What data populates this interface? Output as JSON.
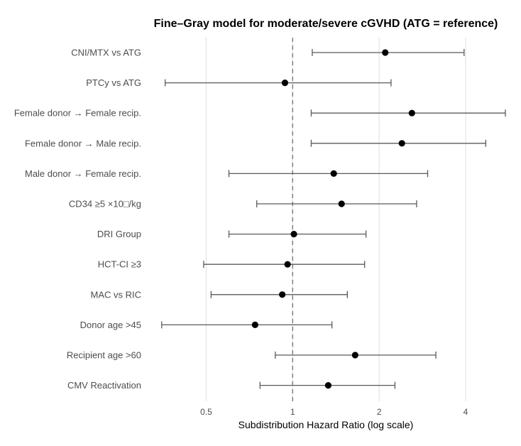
{
  "chart_data": {
    "type": "forest",
    "title": "Fine–Gray model for moderate/severe cGVHD (ATG = reference)",
    "xlabel": "Subdistribution Hazard Ratio (log scale)",
    "x_scale": "log",
    "xlim": [
      0.32,
      5.5
    ],
    "x_ticks": [
      0.5,
      1,
      2,
      4
    ],
    "x_tick_labels": [
      "0.5",
      "1",
      "2",
      "4"
    ],
    "reference_line": 1,
    "grid": "vertical major",
    "rows": [
      {
        "label": "CNI/MTX vs ATG",
        "hr": 2.1,
        "lower": 1.17,
        "upper": 3.95
      },
      {
        "label": "PTCy vs ATG",
        "hr": 0.94,
        "lower": 0.36,
        "upper": 2.2
      },
      {
        "label": "Female donor → Female recip.",
        "hr": 2.6,
        "lower": 1.16,
        "upper": 5.5
      },
      {
        "label": "Female donor → Male recip.",
        "hr": 2.4,
        "lower": 1.16,
        "upper": 4.7
      },
      {
        "label": "Male donor → Female recip.",
        "hr": 1.39,
        "lower": 0.6,
        "upper": 2.95
      },
      {
        "label": "CD34 ≥5 ×10□/kg",
        "hr": 1.48,
        "lower": 0.75,
        "upper": 2.7
      },
      {
        "label": "DRI Group",
        "hr": 1.01,
        "lower": 0.6,
        "upper": 1.8
      },
      {
        "label": "HCT-CI ≥3",
        "hr": 0.96,
        "lower": 0.49,
        "upper": 1.78
      },
      {
        "label": "MAC vs RIC",
        "hr": 0.92,
        "lower": 0.52,
        "upper": 1.55
      },
      {
        "label": "Donor age >45",
        "hr": 0.74,
        "lower": 0.35,
        "upper": 1.37
      },
      {
        "label": "Recipient age >60",
        "hr": 1.65,
        "lower": 0.87,
        "upper": 3.15
      },
      {
        "label": "CMV Reactivation",
        "hr": 1.33,
        "lower": 0.77,
        "upper": 2.27
      }
    ]
  }
}
